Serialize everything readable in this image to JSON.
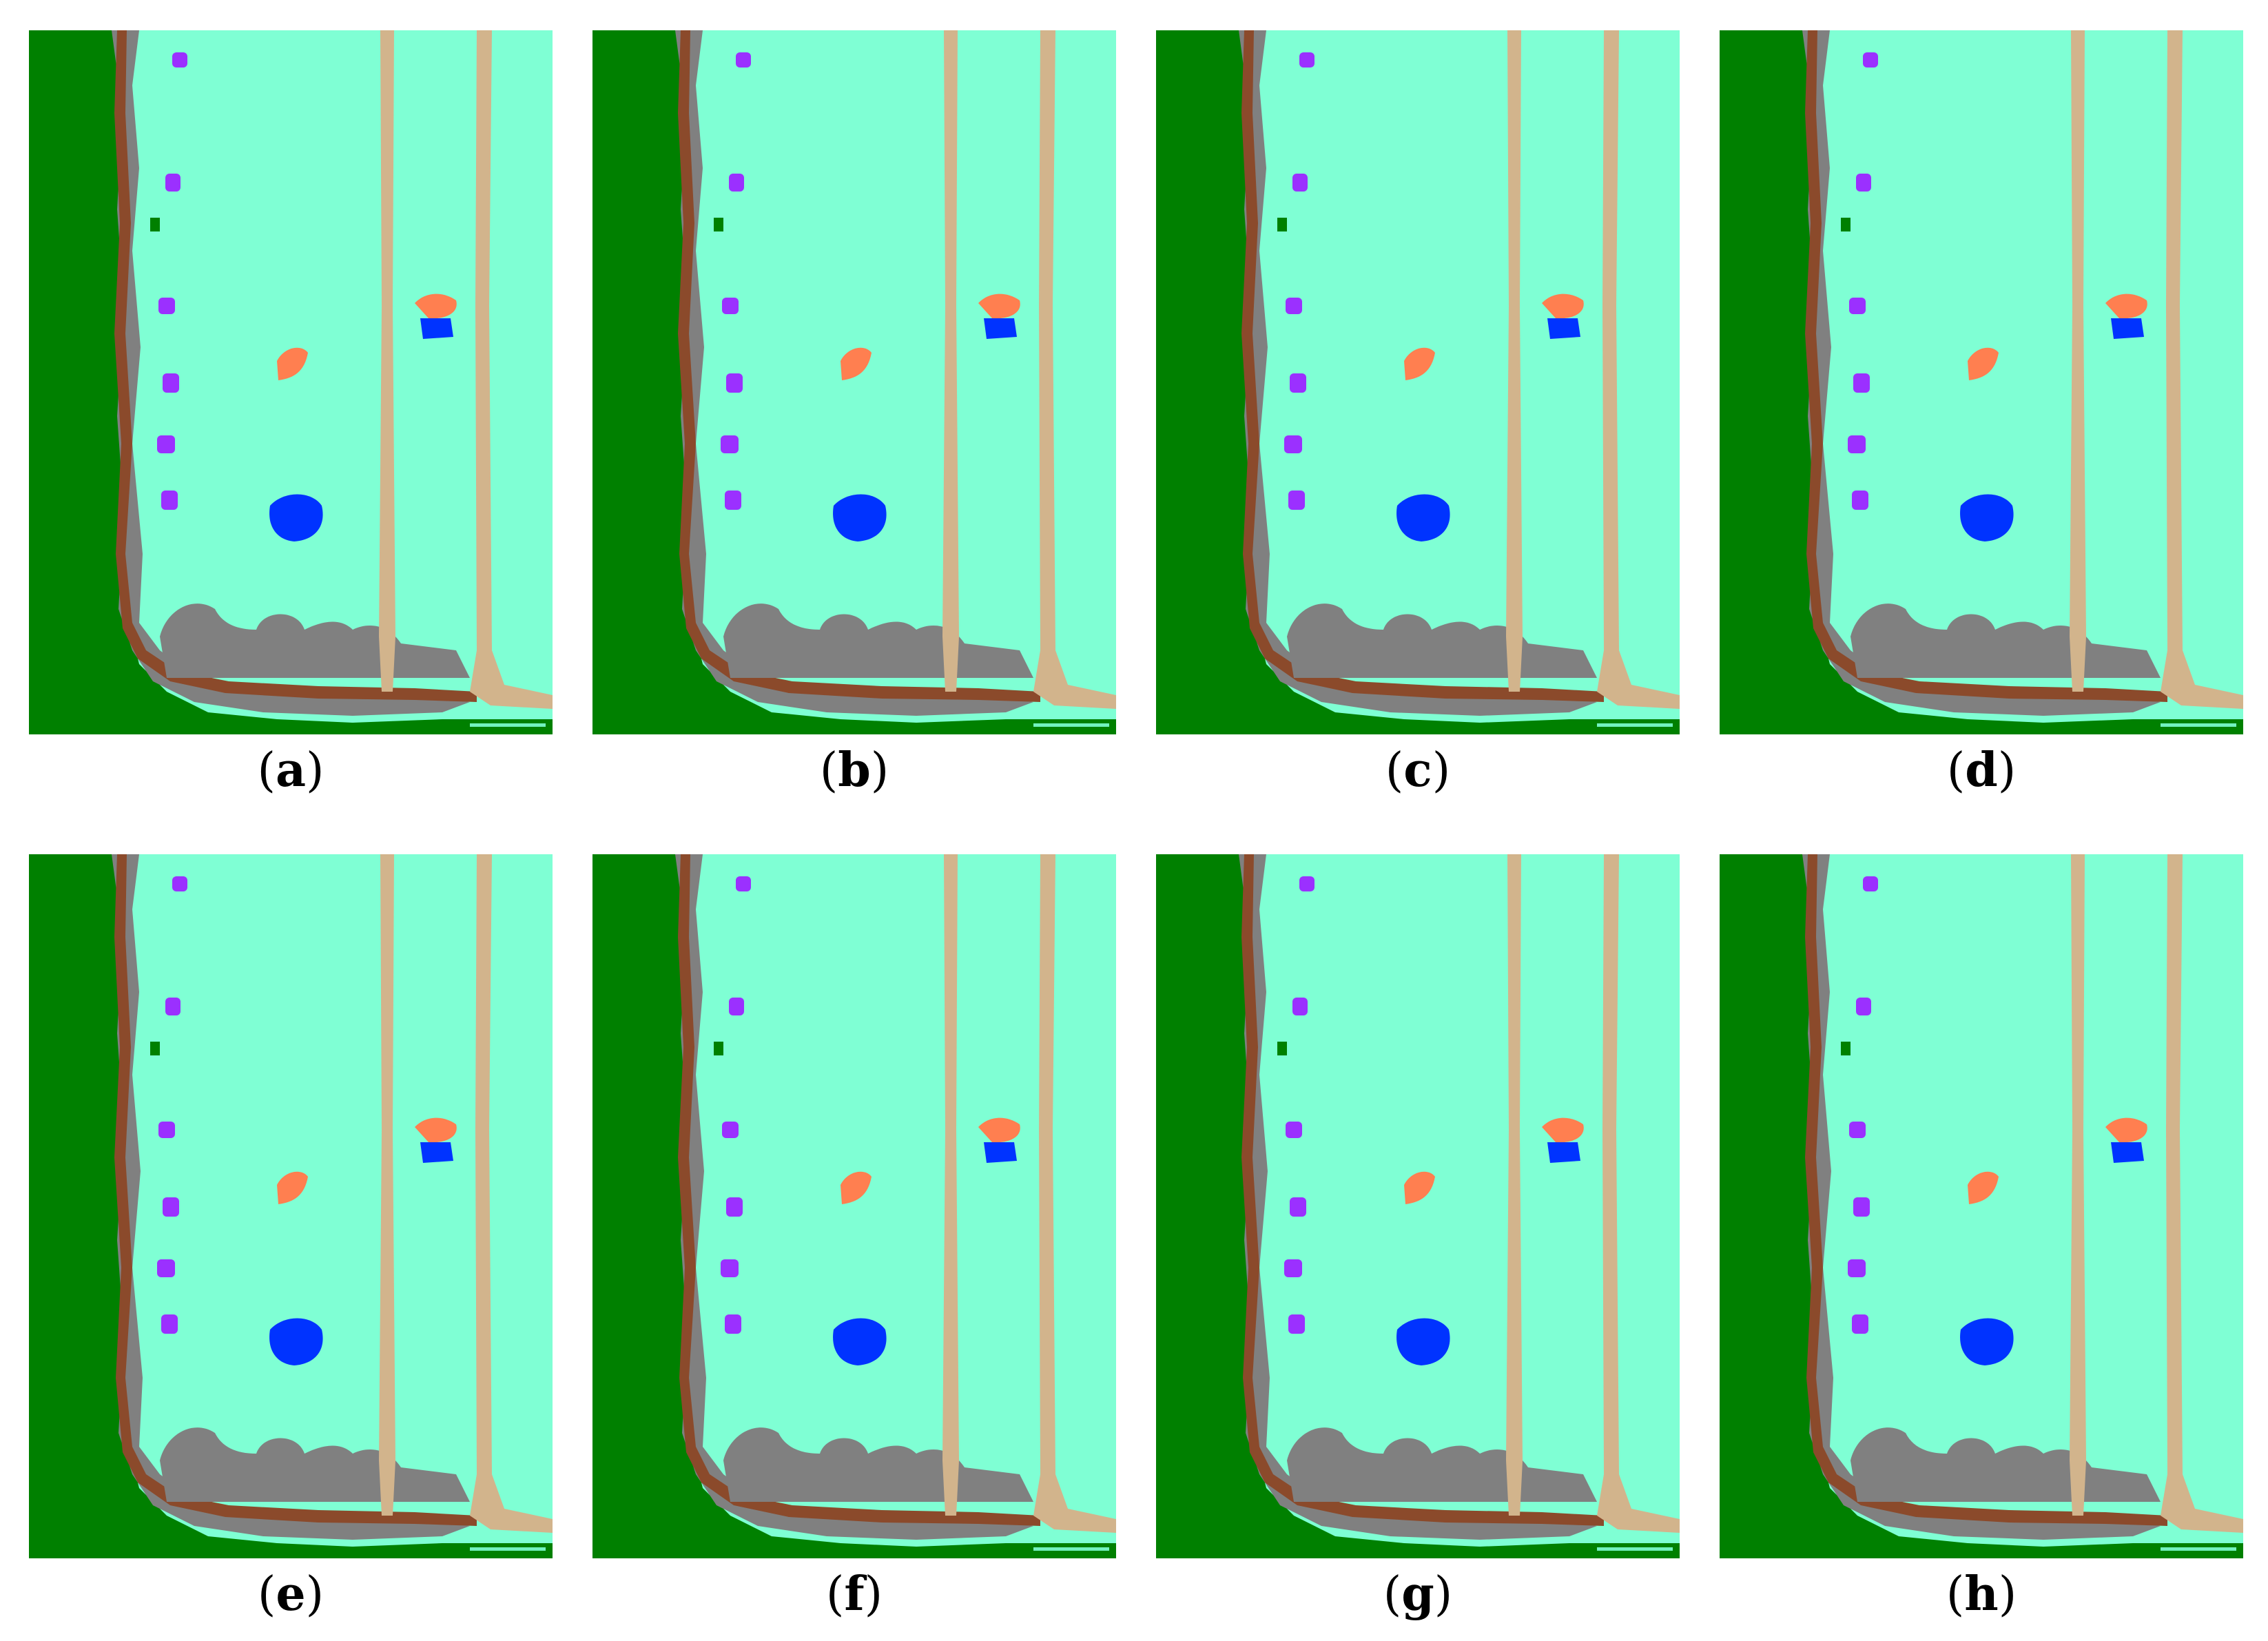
{
  "figure": {
    "panels": [
      {
        "id": "a",
        "label": "a"
      },
      {
        "id": "b",
        "label": "b"
      },
      {
        "id": "c",
        "label": "c"
      },
      {
        "id": "d",
        "label": "d"
      },
      {
        "id": "e",
        "label": "e"
      },
      {
        "id": "f",
        "label": "f"
      },
      {
        "id": "g",
        "label": "g"
      },
      {
        "id": "h",
        "label": "h"
      }
    ],
    "colors": {
      "grass": "#7fffd4",
      "forest": "#008000",
      "brown_path": "#8b4a2b",
      "gray": "#808080",
      "road": "#d2b48c",
      "purple": "#9b30ff",
      "orange": "#ff7f50",
      "blue": "#0033ff"
    }
  }
}
